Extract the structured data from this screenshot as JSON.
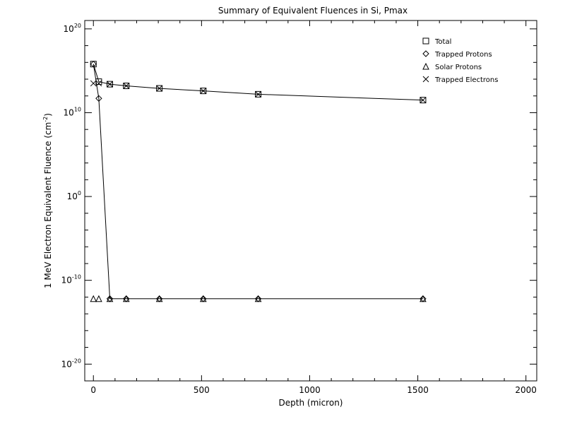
{
  "chart_data": {
    "type": "scatter",
    "title": "Summary of Equivalent Fluences in Si, Pmax",
    "xlabel": "Depth (micron)",
    "ylabel": {
      "prefix": "1 MeV Electron Equivalent Fluence (cm",
      "exp": "-2",
      "suffix": ")"
    },
    "xlim": [
      -40,
      2050
    ],
    "ylim_log10": [
      -22,
      21
    ],
    "y_scale": "log",
    "x_ticks": [
      "0",
      "500",
      "1000",
      "1500",
      "2000"
    ],
    "x_tick_values": [
      0,
      500,
      1000,
      1500,
      2000
    ],
    "y_ticks": [
      {
        "base": "10",
        "exp": "20",
        "value_log10": 20
      },
      {
        "base": "10",
        "exp": "10",
        "value_log10": 10
      },
      {
        "base": "10",
        "exp": "0",
        "value_log10": 0
      },
      {
        "base": "10",
        "exp": "-10",
        "value_log10": -10
      },
      {
        "base": "10",
        "exp": "-20",
        "value_log10": -20
      }
    ],
    "legend_position": "top-right",
    "x": [
      0,
      25,
      76,
      152,
      305,
      508,
      762,
      1524
    ],
    "series": [
      {
        "name": "Total",
        "marker": "square",
        "log10_values": [
          15.8,
          13.7,
          13.4,
          13.2,
          12.9,
          12.6,
          12.2,
          11.5
        ],
        "connected": true
      },
      {
        "name": "Trapped Protons",
        "marker": "diamond",
        "log10_values": [
          15.8,
          11.7,
          -12.2,
          -12.2,
          -12.2,
          -12.2,
          -12.2,
          -12.2
        ],
        "connected": true
      },
      {
        "name": "Solar Protons",
        "marker": "triangle",
        "log10_values": [
          -12.2,
          -12.2,
          -12.2,
          -12.2,
          -12.2,
          -12.2,
          -12.2,
          -12.2
        ],
        "connected": false
      },
      {
        "name": "Trapped Electrons",
        "marker": "x",
        "log10_values": [
          13.5,
          13.5,
          13.4,
          13.2,
          12.9,
          12.6,
          12.2,
          11.5
        ],
        "connected": false
      }
    ]
  }
}
